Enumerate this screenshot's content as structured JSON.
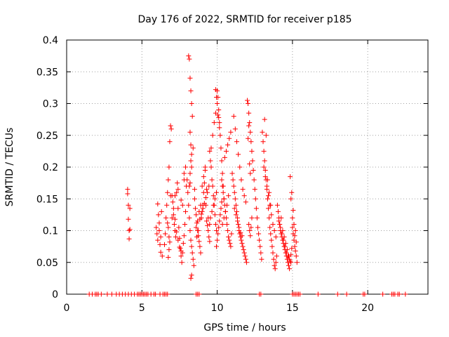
{
  "chart_data": {
    "type": "scatter",
    "title": "Day 176 of 2022, SRMTID for receiver p185",
    "xlabel": "GPS time / hours",
    "ylabel": "SRMTID / TECUs",
    "xlim": [
      0,
      24
    ],
    "ylim": [
      0,
      0.4
    ],
    "xticks": [
      "0",
      "5",
      "10",
      "15",
      "20"
    ],
    "xtick_values": [
      0,
      5,
      10,
      15,
      20
    ],
    "yticks": [
      "0",
      "0.05",
      "0.1",
      "0.15",
      "0.2",
      "0.25",
      "0.3",
      "0.35",
      "0.4"
    ],
    "ytick_values": [
      0,
      0.05,
      0.1,
      0.15,
      0.2,
      0.25,
      0.3,
      0.35,
      0.4
    ],
    "grid": true,
    "marker": "plus",
    "marker_color": "#ff0000",
    "series": [
      {
        "name": "SRMTID",
        "x": [
          4.05,
          4.05,
          4.1,
          4.1,
          4.15,
          4.15,
          4.2,
          4.2,
          5.95,
          6.0,
          6.05,
          6.1,
          6.15,
          6.2,
          6.25,
          6.3,
          6.05,
          6.15,
          6.25,
          6.35,
          6.5,
          6.55,
          6.6,
          6.65,
          6.7,
          6.75,
          6.8,
          6.85,
          6.9,
          6.95,
          6.7,
          6.75,
          6.8,
          6.85,
          6.75,
          6.8,
          6.9,
          7.0,
          7.0,
          7.05,
          7.1,
          7.15,
          7.2,
          7.25,
          7.3,
          7.35,
          7.4,
          7.45,
          7.5,
          7.55,
          7.6,
          7.65,
          7.7,
          7.75,
          7.8,
          7.85,
          7.9,
          7.95,
          7.1,
          7.2,
          7.3,
          7.4,
          7.5,
          7.6,
          7.7,
          7.8,
          7.9,
          7.2,
          7.4,
          7.6,
          7.8,
          8.0,
          8.05,
          8.1,
          8.15,
          8.2,
          8.25,
          8.3,
          8.35,
          8.4,
          8.45,
          8.1,
          8.15,
          8.2,
          8.25,
          8.3,
          8.35,
          8.2,
          8.25,
          8.3,
          8.2,
          8.25,
          8.3,
          8.15,
          8.2,
          8.25,
          8.3,
          8.4,
          8.5,
          8.5,
          8.55,
          8.6,
          8.65,
          8.7,
          8.75,
          8.8,
          8.85,
          8.9,
          8.95,
          9.0,
          9.05,
          9.1,
          9.15,
          9.2,
          9.25,
          9.3,
          9.35,
          9.4,
          9.45,
          9.5,
          8.6,
          8.7,
          8.8,
          8.9,
          9.0,
          9.1,
          9.2,
          9.3,
          9.4,
          9.5,
          8.65,
          8.75,
          8.85,
          8.95,
          9.05,
          9.15,
          9.25,
          9.35,
          9.45,
          9.5,
          9.55,
          9.6,
          9.65,
          9.7,
          9.75,
          9.8,
          9.85,
          9.9,
          9.95,
          9.6,
          9.7,
          9.8,
          9.9,
          9.55,
          9.65,
          9.75,
          9.85,
          9.95,
          10.0,
          10.05,
          10.1,
          10.15,
          10.2,
          10.25,
          10.3,
          10.35,
          10.4,
          10.45,
          9.9,
          9.95,
          10.0,
          10.05,
          10.1,
          10.15,
          9.95,
          10.0,
          10.05,
          10.1,
          10.15,
          10.2,
          10.25,
          10.3,
          10.3,
          10.35,
          10.4,
          10.45,
          10.5,
          10.55,
          10.6,
          10.65,
          10.7,
          10.75,
          10.8,
          10.85,
          10.9,
          10.95,
          10.5,
          10.6,
          10.7,
          10.8,
          10.9,
          10.35,
          10.45,
          10.55,
          10.65,
          10.75,
          11.0,
          11.05,
          11.1,
          11.15,
          11.2,
          11.25,
          11.3,
          11.35,
          11.4,
          11.45,
          11.5,
          11.55,
          11.6,
          11.65,
          11.7,
          11.75,
          11.8,
          11.85,
          11.9,
          11.95,
          11.1,
          11.2,
          11.3,
          11.4,
          11.5,
          11.6,
          11.7,
          11.8,
          11.9,
          11.15,
          11.25,
          11.35,
          11.45,
          11.55,
          11.65,
          12.0,
          12.05,
          12.1,
          12.15,
          12.2,
          12.25,
          12.3,
          12.35,
          12.4,
          12.45,
          12.5,
          12.55,
          12.6,
          12.65,
          12.7,
          12.75,
          12.8,
          12.85,
          12.9,
          12.95,
          12.05,
          12.1,
          12.15,
          12.2,
          12.1,
          12.15,
          12.2,
          12.25,
          12.3,
          13.0,
          13.05,
          13.1,
          13.15,
          13.2,
          13.25,
          13.3,
          13.35,
          13.4,
          13.45,
          13.5,
          13.55,
          13.6,
          13.65,
          13.7,
          13.75,
          13.8,
          13.85,
          13.9,
          13.95,
          13.1,
          13.2,
          13.3,
          13.4,
          13.5,
          13.6,
          13.7,
          13.8,
          13.9,
          13.15,
          13.25,
          13.35,
          13.45,
          13.55,
          14.0,
          14.05,
          14.1,
          14.15,
          14.2,
          14.25,
          14.3,
          14.35,
          14.4,
          14.45,
          14.5,
          14.55,
          14.6,
          14.65,
          14.7,
          14.75,
          14.8,
          14.85,
          14.9,
          14.95,
          14.1,
          14.2,
          14.3,
          14.4,
          14.5,
          14.6,
          14.7,
          14.8,
          14.9,
          14.15,
          14.25,
          14.35,
          14.45,
          14.55,
          14.65,
          14.75,
          14.85,
          15.0,
          15.05,
          15.1,
          15.15,
          15.2,
          15.25,
          15.3,
          15.0,
          15.1,
          15.2,
          15.05,
          15.15,
          15.25,
          14.9,
          14.95,
          1.5,
          1.7,
          1.9,
          2.0,
          2.1,
          2.3,
          2.7,
          3.0,
          3.3,
          3.5,
          3.7,
          3.9,
          4.1,
          4.3,
          4.5,
          4.7,
          4.8,
          4.9,
          5.0,
          5.1,
          5.2,
          5.3,
          5.4,
          5.6,
          5.8,
          5.9,
          6.2,
          6.4,
          6.5,
          6.6,
          6.7,
          8.6,
          8.7,
          8.8,
          12.8,
          12.9,
          15.0,
          15.1,
          15.2,
          15.3,
          15.4,
          15.5,
          16.7,
          18.0,
          18.6,
          19.7,
          19.8,
          21.0,
          21.6,
          21.7,
          21.8,
          22.0,
          22.1,
          22.5
        ],
        "y": [
          0.165,
          0.158,
          0.14,
          0.118,
          0.1,
          0.087,
          0.135,
          0.102,
          0.105,
          0.095,
          0.085,
          0.125,
          0.112,
          0.078,
          0.066,
          0.13,
          0.142,
          0.1,
          0.09,
          0.06,
          0.078,
          0.095,
          0.12,
          0.14,
          0.16,
          0.18,
          0.2,
          0.24,
          0.265,
          0.26,
          0.112,
          0.105,
          0.09,
          0.082,
          0.058,
          0.07,
          0.155,
          0.12,
          0.155,
          0.145,
          0.125,
          0.11,
          0.1,
          0.09,
          0.16,
          0.175,
          0.135,
          0.105,
          0.088,
          0.072,
          0.06,
          0.05,
          0.065,
          0.08,
          0.092,
          0.11,
          0.13,
          0.17,
          0.135,
          0.118,
          0.098,
          0.085,
          0.074,
          0.068,
          0.14,
          0.19,
          0.2,
          0.155,
          0.165,
          0.148,
          0.18,
          0.18,
          0.16,
          0.14,
          0.12,
          0.1,
          0.085,
          0.075,
          0.065,
          0.055,
          0.045,
          0.375,
          0.37,
          0.34,
          0.32,
          0.3,
          0.28,
          0.255,
          0.235,
          0.2,
          0.175,
          0.025,
          0.03,
          0.17,
          0.19,
          0.21,
          0.22,
          0.23,
          0.165,
          0.15,
          0.135,
          0.125,
          0.112,
          0.1,
          0.092,
          0.083,
          0.075,
          0.065,
          0.12,
          0.13,
          0.14,
          0.16,
          0.175,
          0.195,
          0.14,
          0.115,
          0.108,
          0.1,
          0.09,
          0.083,
          0.105,
          0.115,
          0.13,
          0.14,
          0.17,
          0.185,
          0.2,
          0.165,
          0.12,
          0.11,
          0.09,
          0.1,
          0.118,
          0.126,
          0.135,
          0.143,
          0.152,
          0.16,
          0.17,
          0.225,
          0.21,
          0.2,
          0.18,
          0.17,
          0.155,
          0.14,
          0.125,
          0.11,
          0.1,
          0.23,
          0.25,
          0.27,
          0.285,
          0.12,
          0.13,
          0.14,
          0.15,
          0.16,
          0.32,
          0.31,
          0.29,
          0.27,
          0.25,
          0.23,
          0.21,
          0.19,
          0.17,
          0.15,
          0.322,
          0.31,
          0.3,
          0.282,
          0.278,
          0.262,
          0.075,
          0.085,
          0.095,
          0.105,
          0.115,
          0.125,
          0.135,
          0.145,
          0.18,
          0.17,
          0.16,
          0.15,
          0.14,
          0.13,
          0.12,
          0.11,
          0.1,
          0.09,
          0.085,
          0.08,
          0.075,
          0.095,
          0.215,
          0.225,
          0.235,
          0.245,
          0.255,
          0.11,
          0.12,
          0.13,
          0.14,
          0.155,
          0.19,
          0.18,
          0.17,
          0.16,
          0.15,
          0.14,
          0.13,
          0.12,
          0.11,
          0.1,
          0.095,
          0.09,
          0.085,
          0.08,
          0.075,
          0.07,
          0.065,
          0.06,
          0.055,
          0.05,
          0.28,
          0.26,
          0.24,
          0.22,
          0.2,
          0.18,
          0.165,
          0.155,
          0.145,
          0.135,
          0.125,
          0.115,
          0.105,
          0.097,
          0.092,
          0.305,
          0.3,
          0.285,
          0.27,
          0.255,
          0.24,
          0.225,
          0.21,
          0.195,
          0.18,
          0.165,
          0.15,
          0.135,
          0.12,
          0.105,
          0.095,
          0.085,
          0.075,
          0.065,
          0.055,
          0.245,
          0.265,
          0.205,
          0.19,
          0.11,
          0.1,
          0.092,
          0.105,
          0.12,
          0.255,
          0.24,
          0.225,
          0.21,
          0.195,
          0.18,
          0.165,
          0.15,
          0.135,
          0.12,
          0.105,
          0.095,
          0.085,
          0.075,
          0.065,
          0.055,
          0.045,
          0.04,
          0.05,
          0.06,
          0.2,
          0.185,
          0.17,
          0.155,
          0.14,
          0.125,
          0.11,
          0.1,
          0.09,
          0.275,
          0.25,
          0.18,
          0.16,
          0.14,
          0.14,
          0.13,
          0.12,
          0.11,
          0.1,
          0.095,
          0.09,
          0.085,
          0.08,
          0.075,
          0.07,
          0.065,
          0.06,
          0.055,
          0.05,
          0.045,
          0.04,
          0.052,
          0.062,
          0.072,
          0.115,
          0.105,
          0.095,
          0.085,
          0.075,
          0.065,
          0.06,
          0.055,
          0.05,
          0.11,
          0.12,
          0.1,
          0.09,
          0.08,
          0.07,
          0.06,
          0.185,
          0.105,
          0.095,
          0.085,
          0.075,
          0.068,
          0.06,
          0.05,
          0.12,
          0.11,
          0.1,
          0.132,
          0.092,
          0.082,
          0.15,
          0.16,
          0,
          0,
          0,
          0,
          0,
          0,
          0,
          0,
          0,
          0,
          0,
          0,
          0,
          0,
          0,
          0,
          0,
          0,
          0,
          0,
          0,
          0,
          0,
          0,
          0,
          0,
          0,
          0,
          0,
          0,
          0,
          0,
          0,
          0,
          0,
          0,
          0,
          0,
          0,
          0,
          0,
          0,
          0,
          0,
          0,
          0,
          0,
          0,
          0,
          0,
          0,
          0,
          0,
          0
        ]
      }
    ]
  }
}
